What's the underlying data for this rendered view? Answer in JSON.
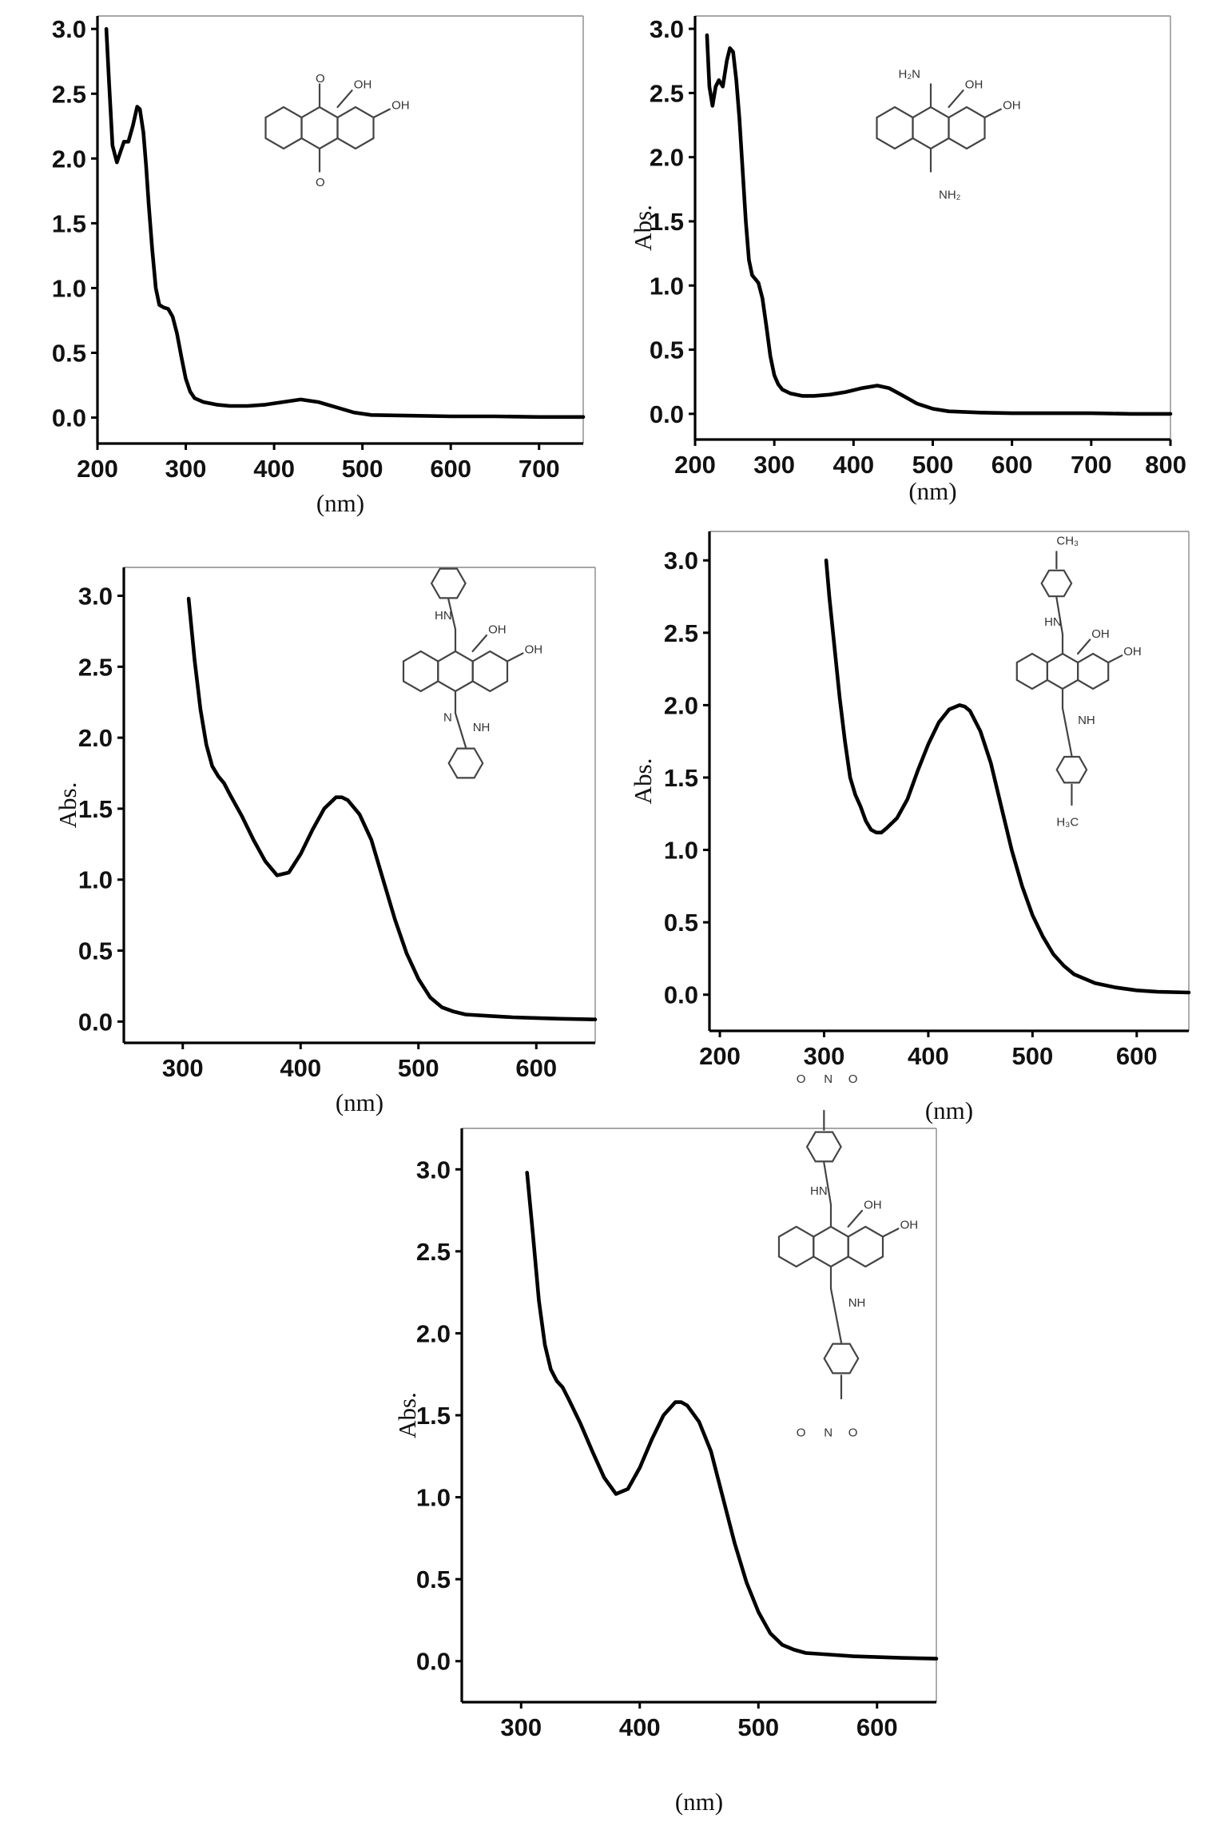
{
  "chart_data": [
    {
      "type": "line",
      "xlabel": "(nm)",
      "ylabel": "",
      "xlim": [
        200,
        750
      ],
      "ylim": [
        -0.2,
        3.1
      ],
      "xticks": [
        200,
        300,
        400,
        500,
        600,
        700
      ],
      "yticks": [
        0.0,
        0.5,
        1.0,
        1.5,
        2.0,
        2.5,
        3.0
      ],
      "tick_labels_y": [
        "0.0",
        "0.5",
        "1.0",
        "1.5",
        "2.0",
        "2.5",
        "3.0"
      ],
      "tick_labels_x": [
        "200",
        "300",
        "400",
        "500",
        "600",
        "700"
      ],
      "structure_labels": [
        "OH",
        "OH",
        "O",
        "O"
      ],
      "series": [
        {
          "x": [
            210,
            213,
            217,
            222,
            226,
            230,
            235,
            240,
            245,
            248,
            252,
            255,
            258,
            262,
            266,
            270,
            275,
            280,
            285,
            290,
            295,
            300,
            305,
            310,
            320,
            335,
            350,
            370,
            390,
            410,
            430,
            450,
            470,
            490,
            510,
            550,
            600,
            650,
            700,
            750
          ],
          "y": [
            3.0,
            2.6,
            2.1,
            1.97,
            2.05,
            2.13,
            2.13,
            2.25,
            2.4,
            2.38,
            2.2,
            1.95,
            1.65,
            1.3,
            1.0,
            0.87,
            0.85,
            0.84,
            0.78,
            0.65,
            0.47,
            0.3,
            0.2,
            0.15,
            0.12,
            0.1,
            0.09,
            0.09,
            0.1,
            0.12,
            0.14,
            0.12,
            0.08,
            0.04,
            0.02,
            0.015,
            0.01,
            0.01,
            0.005,
            0.005
          ]
        }
      ]
    },
    {
      "type": "line",
      "xlabel": "(nm)",
      "ylabel": "Abs.",
      "xlim": [
        200,
        800
      ],
      "ylim": [
        -0.2,
        3.1
      ],
      "xticks": [
        200,
        300,
        400,
        500,
        600,
        700,
        800
      ],
      "yticks": [
        0.0,
        0.5,
        1.0,
        1.5,
        2.0,
        2.5,
        3.0
      ],
      "tick_labels_y": [
        "0.0",
        "0.5",
        "1.0",
        "1.5",
        "2.0",
        "2.5",
        "3.0"
      ],
      "tick_labels_x": [
        "200",
        "300",
        "400",
        "500",
        "600",
        "700",
        "800"
      ],
      "structure_labels": [
        "H₂N",
        "OH",
        "OH",
        "NH₂"
      ],
      "series": [
        {
          "x": [
            215,
            218,
            222,
            226,
            230,
            235,
            240,
            244,
            248,
            252,
            256,
            260,
            264,
            268,
            272,
            276,
            280,
            285,
            290,
            295,
            300,
            305,
            310,
            320,
            335,
            350,
            370,
            390,
            410,
            430,
            445,
            460,
            480,
            500,
            520,
            560,
            600,
            650,
            700,
            750,
            800
          ],
          "y": [
            2.95,
            2.55,
            2.4,
            2.55,
            2.6,
            2.55,
            2.75,
            2.85,
            2.82,
            2.6,
            2.3,
            1.9,
            1.5,
            1.2,
            1.08,
            1.05,
            1.02,
            0.9,
            0.68,
            0.45,
            0.3,
            0.23,
            0.19,
            0.16,
            0.14,
            0.14,
            0.15,
            0.17,
            0.2,
            0.22,
            0.2,
            0.15,
            0.08,
            0.04,
            0.02,
            0.01,
            0.005,
            0.005,
            0.005,
            0.0,
            0.0
          ]
        }
      ]
    },
    {
      "type": "line",
      "xlabel": "(nm)",
      "ylabel": "Abs.",
      "xlim": [
        250,
        650
      ],
      "ylim": [
        -0.15,
        3.2
      ],
      "xticks": [
        300,
        400,
        500,
        600
      ],
      "yticks": [
        0.0,
        0.5,
        1.0,
        1.5,
        2.0,
        2.5,
        3.0
      ],
      "tick_labels_y": [
        "0.0",
        "0.5",
        "1.0",
        "1.5",
        "2.0",
        "2.5",
        "3.0"
      ],
      "tick_labels_x": [
        "300",
        "400",
        "500",
        "600"
      ],
      "structure_labels": [
        "HN",
        "OH",
        "OH",
        "N",
        "NH"
      ],
      "series": [
        {
          "x": [
            305,
            310,
            315,
            320,
            325,
            330,
            335,
            340,
            350,
            360,
            370,
            380,
            390,
            400,
            410,
            420,
            430,
            435,
            440,
            450,
            460,
            470,
            480,
            490,
            500,
            510,
            520,
            530,
            540,
            560,
            580,
            600,
            620,
            650
          ],
          "y": [
            2.98,
            2.55,
            2.2,
            1.95,
            1.8,
            1.73,
            1.68,
            1.6,
            1.45,
            1.28,
            1.13,
            1.03,
            1.05,
            1.18,
            1.35,
            1.5,
            1.58,
            1.58,
            1.56,
            1.46,
            1.28,
            1.0,
            0.72,
            0.48,
            0.3,
            0.17,
            0.1,
            0.07,
            0.05,
            0.04,
            0.03,
            0.025,
            0.02,
            0.015
          ]
        }
      ]
    },
    {
      "type": "line",
      "xlabel": "(nm)",
      "ylabel": "Abs.",
      "xlim": [
        190,
        650
      ],
      "ylim": [
        -0.25,
        3.2
      ],
      "xticks": [
        200,
        300,
        400,
        500,
        600
      ],
      "yticks": [
        0.0,
        0.5,
        1.0,
        1.5,
        2.0,
        2.5,
        3.0
      ],
      "tick_labels_y": [
        "0.0",
        "0.5",
        "1.0",
        "1.5",
        "2.0",
        "2.5",
        "3.0"
      ],
      "tick_labels_x": [
        "200",
        "300",
        "400",
        "500",
        "600"
      ],
      "structure_labels": [
        "CH₃",
        "HN",
        "OH",
        "OH",
        "NH",
        "H₃C"
      ],
      "series": [
        {
          "x": [
            302,
            305,
            310,
            315,
            320,
            325,
            330,
            335,
            340,
            345,
            350,
            355,
            360,
            370,
            380,
            390,
            400,
            410,
            420,
            430,
            435,
            440,
            450,
            460,
            470,
            480,
            490,
            500,
            510,
            520,
            530,
            540,
            560,
            580,
            600,
            620,
            650
          ],
          "y": [
            3.0,
            2.75,
            2.4,
            2.05,
            1.75,
            1.5,
            1.38,
            1.3,
            1.2,
            1.14,
            1.12,
            1.12,
            1.15,
            1.22,
            1.35,
            1.55,
            1.73,
            1.88,
            1.97,
            2.0,
            1.99,
            1.96,
            1.82,
            1.6,
            1.3,
            1.0,
            0.75,
            0.55,
            0.4,
            0.28,
            0.2,
            0.14,
            0.08,
            0.05,
            0.03,
            0.02,
            0.015
          ]
        }
      ]
    },
    {
      "type": "line",
      "xlabel": "(nm)",
      "ylabel": "Abs.",
      "xlim": [
        250,
        650
      ],
      "ylim": [
        -0.25,
        3.25
      ],
      "xticks": [
        300,
        400,
        500,
        600
      ],
      "yticks": [
        0.0,
        0.5,
        1.0,
        1.5,
        2.0,
        2.5,
        3.0
      ],
      "tick_labels_y": [
        "0.0",
        "0.5",
        "1.0",
        "1.5",
        "2.0",
        "2.5",
        "3.0"
      ],
      "tick_labels_x": [
        "300",
        "400",
        "500",
        "600"
      ],
      "structure_labels": [
        "O",
        "N",
        "O",
        "HN",
        "OH",
        "OH",
        "NH",
        "O",
        "N",
        "O"
      ],
      "series": [
        {
          "x": [
            305,
            310,
            315,
            320,
            325,
            330,
            335,
            340,
            350,
            360,
            370,
            380,
            390,
            400,
            410,
            420,
            430,
            435,
            440,
            450,
            460,
            470,
            480,
            490,
            500,
            510,
            520,
            530,
            540,
            560,
            580,
            600,
            620,
            650
          ],
          "y": [
            2.98,
            2.6,
            2.2,
            1.93,
            1.78,
            1.71,
            1.67,
            1.6,
            1.45,
            1.28,
            1.12,
            1.02,
            1.05,
            1.18,
            1.35,
            1.5,
            1.58,
            1.58,
            1.56,
            1.46,
            1.28,
            1.0,
            0.72,
            0.48,
            0.3,
            0.17,
            0.1,
            0.07,
            0.05,
            0.04,
            0.03,
            0.025,
            0.02,
            0.015
          ]
        }
      ]
    }
  ]
}
